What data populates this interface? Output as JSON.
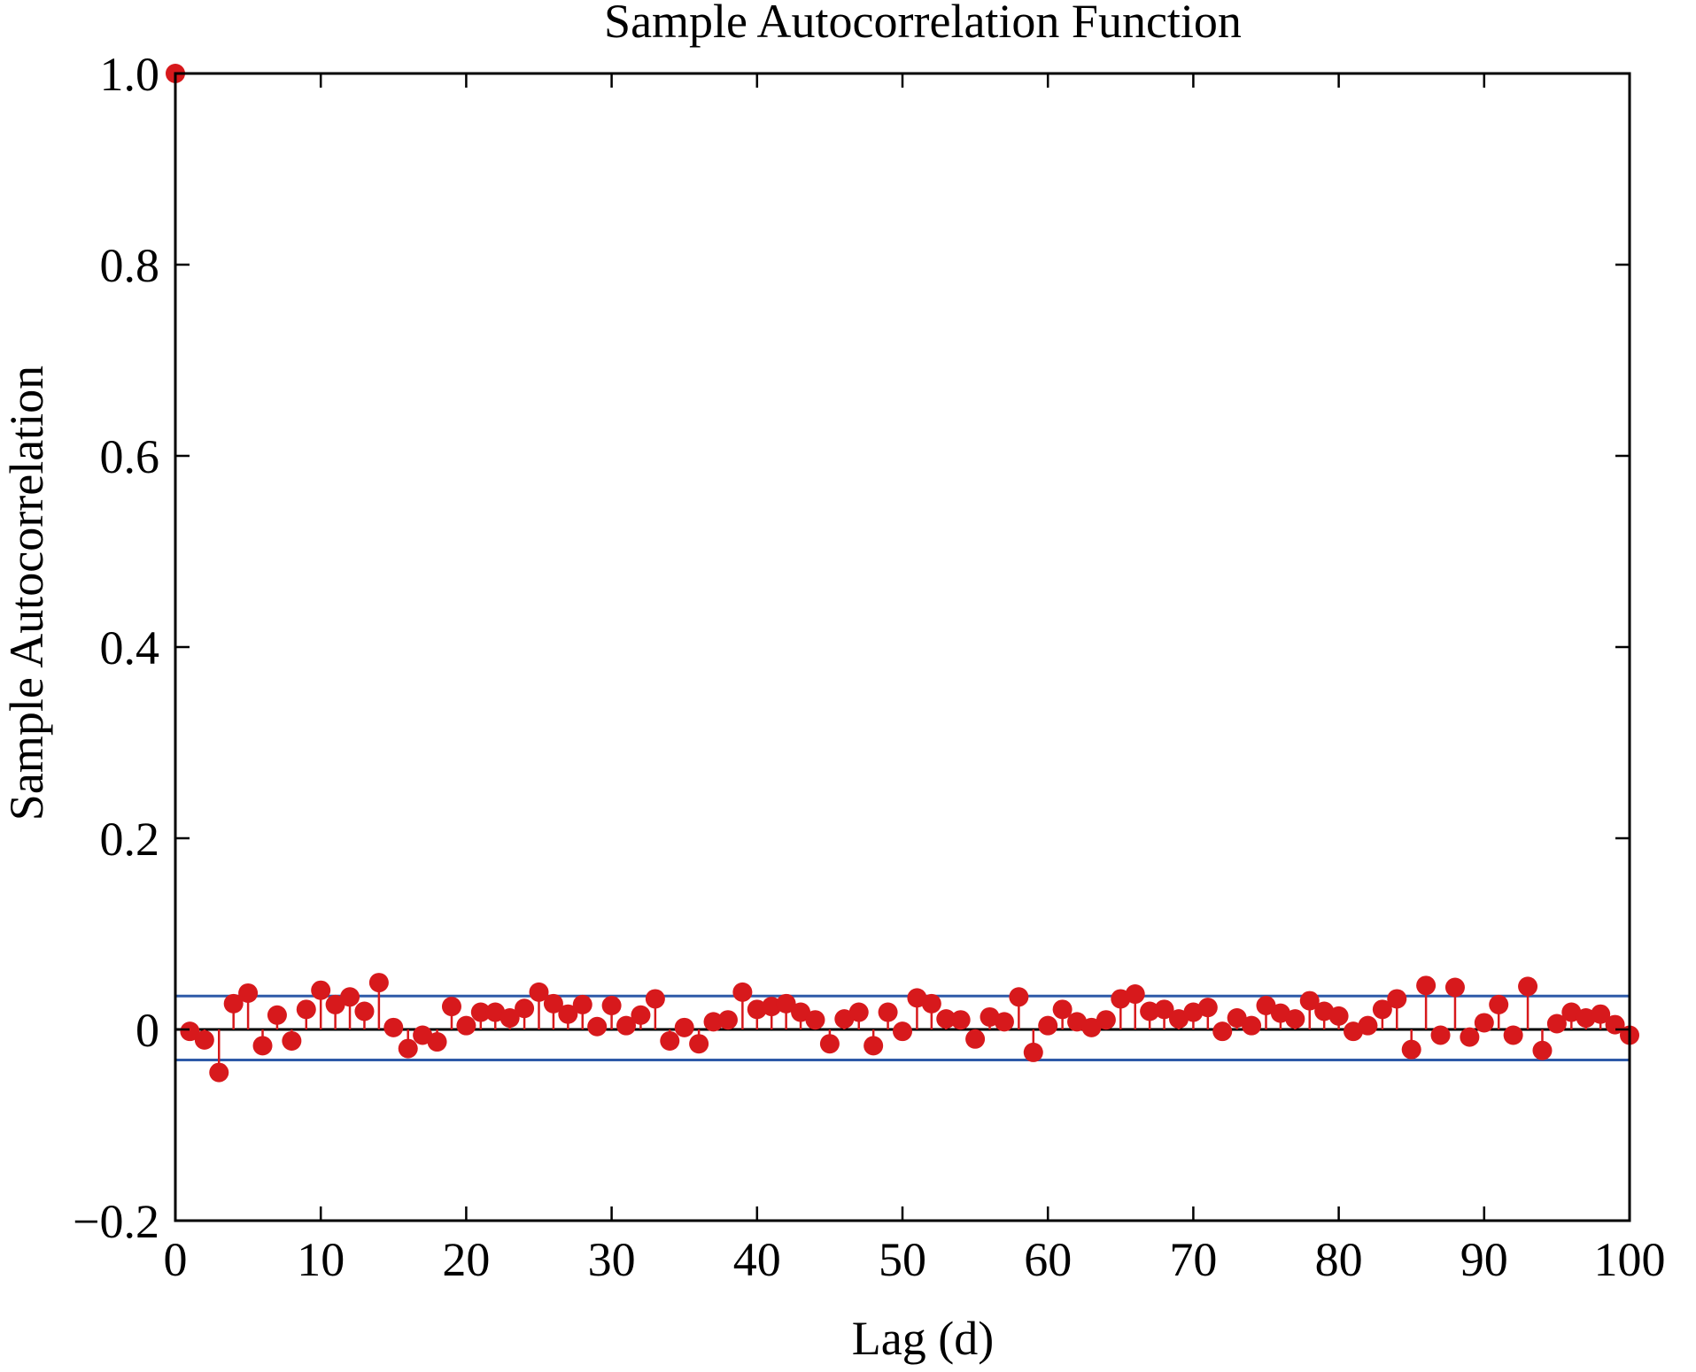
{
  "chart_data": {
    "type": "stem",
    "title": "Sample Autocorrelation Function",
    "xlabel": "Lag (d)",
    "ylabel": "Sample Autocorrelation",
    "xlim": [
      0,
      100
    ],
    "ylim": [
      -0.2,
      1.0
    ],
    "xticks": [
      0,
      10,
      20,
      30,
      40,
      50,
      60,
      70,
      80,
      90,
      100
    ],
    "xtick_labels": [
      "0",
      "10",
      "20",
      "30",
      "40",
      "50",
      "60",
      "70",
      "80",
      "90",
      "100"
    ],
    "yticks": [
      -0.2,
      0,
      0.2,
      0.4,
      0.6,
      0.8,
      1.0
    ],
    "ytick_labels": [
      "−0.2",
      "0",
      "0.2",
      "0.4",
      "0.6",
      "0.8",
      "1.0"
    ],
    "grid": false,
    "confidence_bounds": [
      0.035,
      -0.032
    ],
    "colors": {
      "stem": "#d7191c",
      "bounds": "#2e5aa8",
      "zero_line": "#000000"
    },
    "series": [
      {
        "x": [
          0,
          1,
          2,
          3,
          4,
          5,
          6,
          7,
          8,
          9,
          10,
          11,
          12,
          13,
          14,
          15,
          16,
          17,
          18,
          19,
          20,
          21,
          22,
          23,
          24,
          25,
          26,
          27,
          28,
          29,
          30,
          31,
          32,
          33,
          34,
          35,
          36,
          37,
          38,
          39,
          40,
          41,
          42,
          43,
          44,
          45,
          46,
          47,
          48,
          49,
          50,
          51,
          52,
          53,
          54,
          55,
          56,
          57,
          58,
          59,
          60,
          61,
          62,
          63,
          64,
          65,
          66,
          67,
          68,
          69,
          70,
          71,
          72,
          73,
          74,
          75,
          76,
          77,
          78,
          79,
          80,
          81,
          82,
          83,
          84,
          85,
          86,
          87,
          88,
          89,
          90,
          91,
          92,
          93,
          94,
          95,
          96,
          97,
          98,
          99,
          100
        ],
        "values": [
          1.0,
          -0.002,
          -0.011,
          -0.045,
          0.027,
          0.038,
          -0.017,
          0.015,
          -0.012,
          0.021,
          0.041,
          0.026,
          0.034,
          0.019,
          0.049,
          0.002,
          -0.02,
          -0.006,
          -0.013,
          0.024,
          0.004,
          0.018,
          0.018,
          0.012,
          0.022,
          0.039,
          0.027,
          0.016,
          0.026,
          0.003,
          0.025,
          0.004,
          0.015,
          0.032,
          -0.012,
          0.002,
          -0.015,
          0.008,
          0.01,
          0.039,
          0.021,
          0.024,
          0.027,
          0.018,
          0.01,
          -0.015,
          0.011,
          0.018,
          -0.017,
          0.018,
          -0.002,
          0.033,
          0.027,
          0.011,
          0.01,
          -0.01,
          0.013,
          0.008,
          0.034,
          -0.024,
          0.004,
          0.021,
          0.008,
          0.002,
          0.01,
          0.032,
          0.037,
          0.019,
          0.021,
          0.011,
          0.018,
          0.023,
          -0.002,
          0.012,
          0.004,
          0.025,
          0.017,
          0.011,
          0.03,
          0.019,
          0.014,
          -0.002,
          0.004,
          0.021,
          0.032,
          -0.021,
          0.046,
          -0.006,
          0.044,
          -0.008,
          0.007,
          0.026,
          -0.006,
          0.045,
          -0.022,
          0.006,
          0.018,
          0.012,
          0.016,
          0.005,
          -0.006
        ]
      }
    ]
  }
}
